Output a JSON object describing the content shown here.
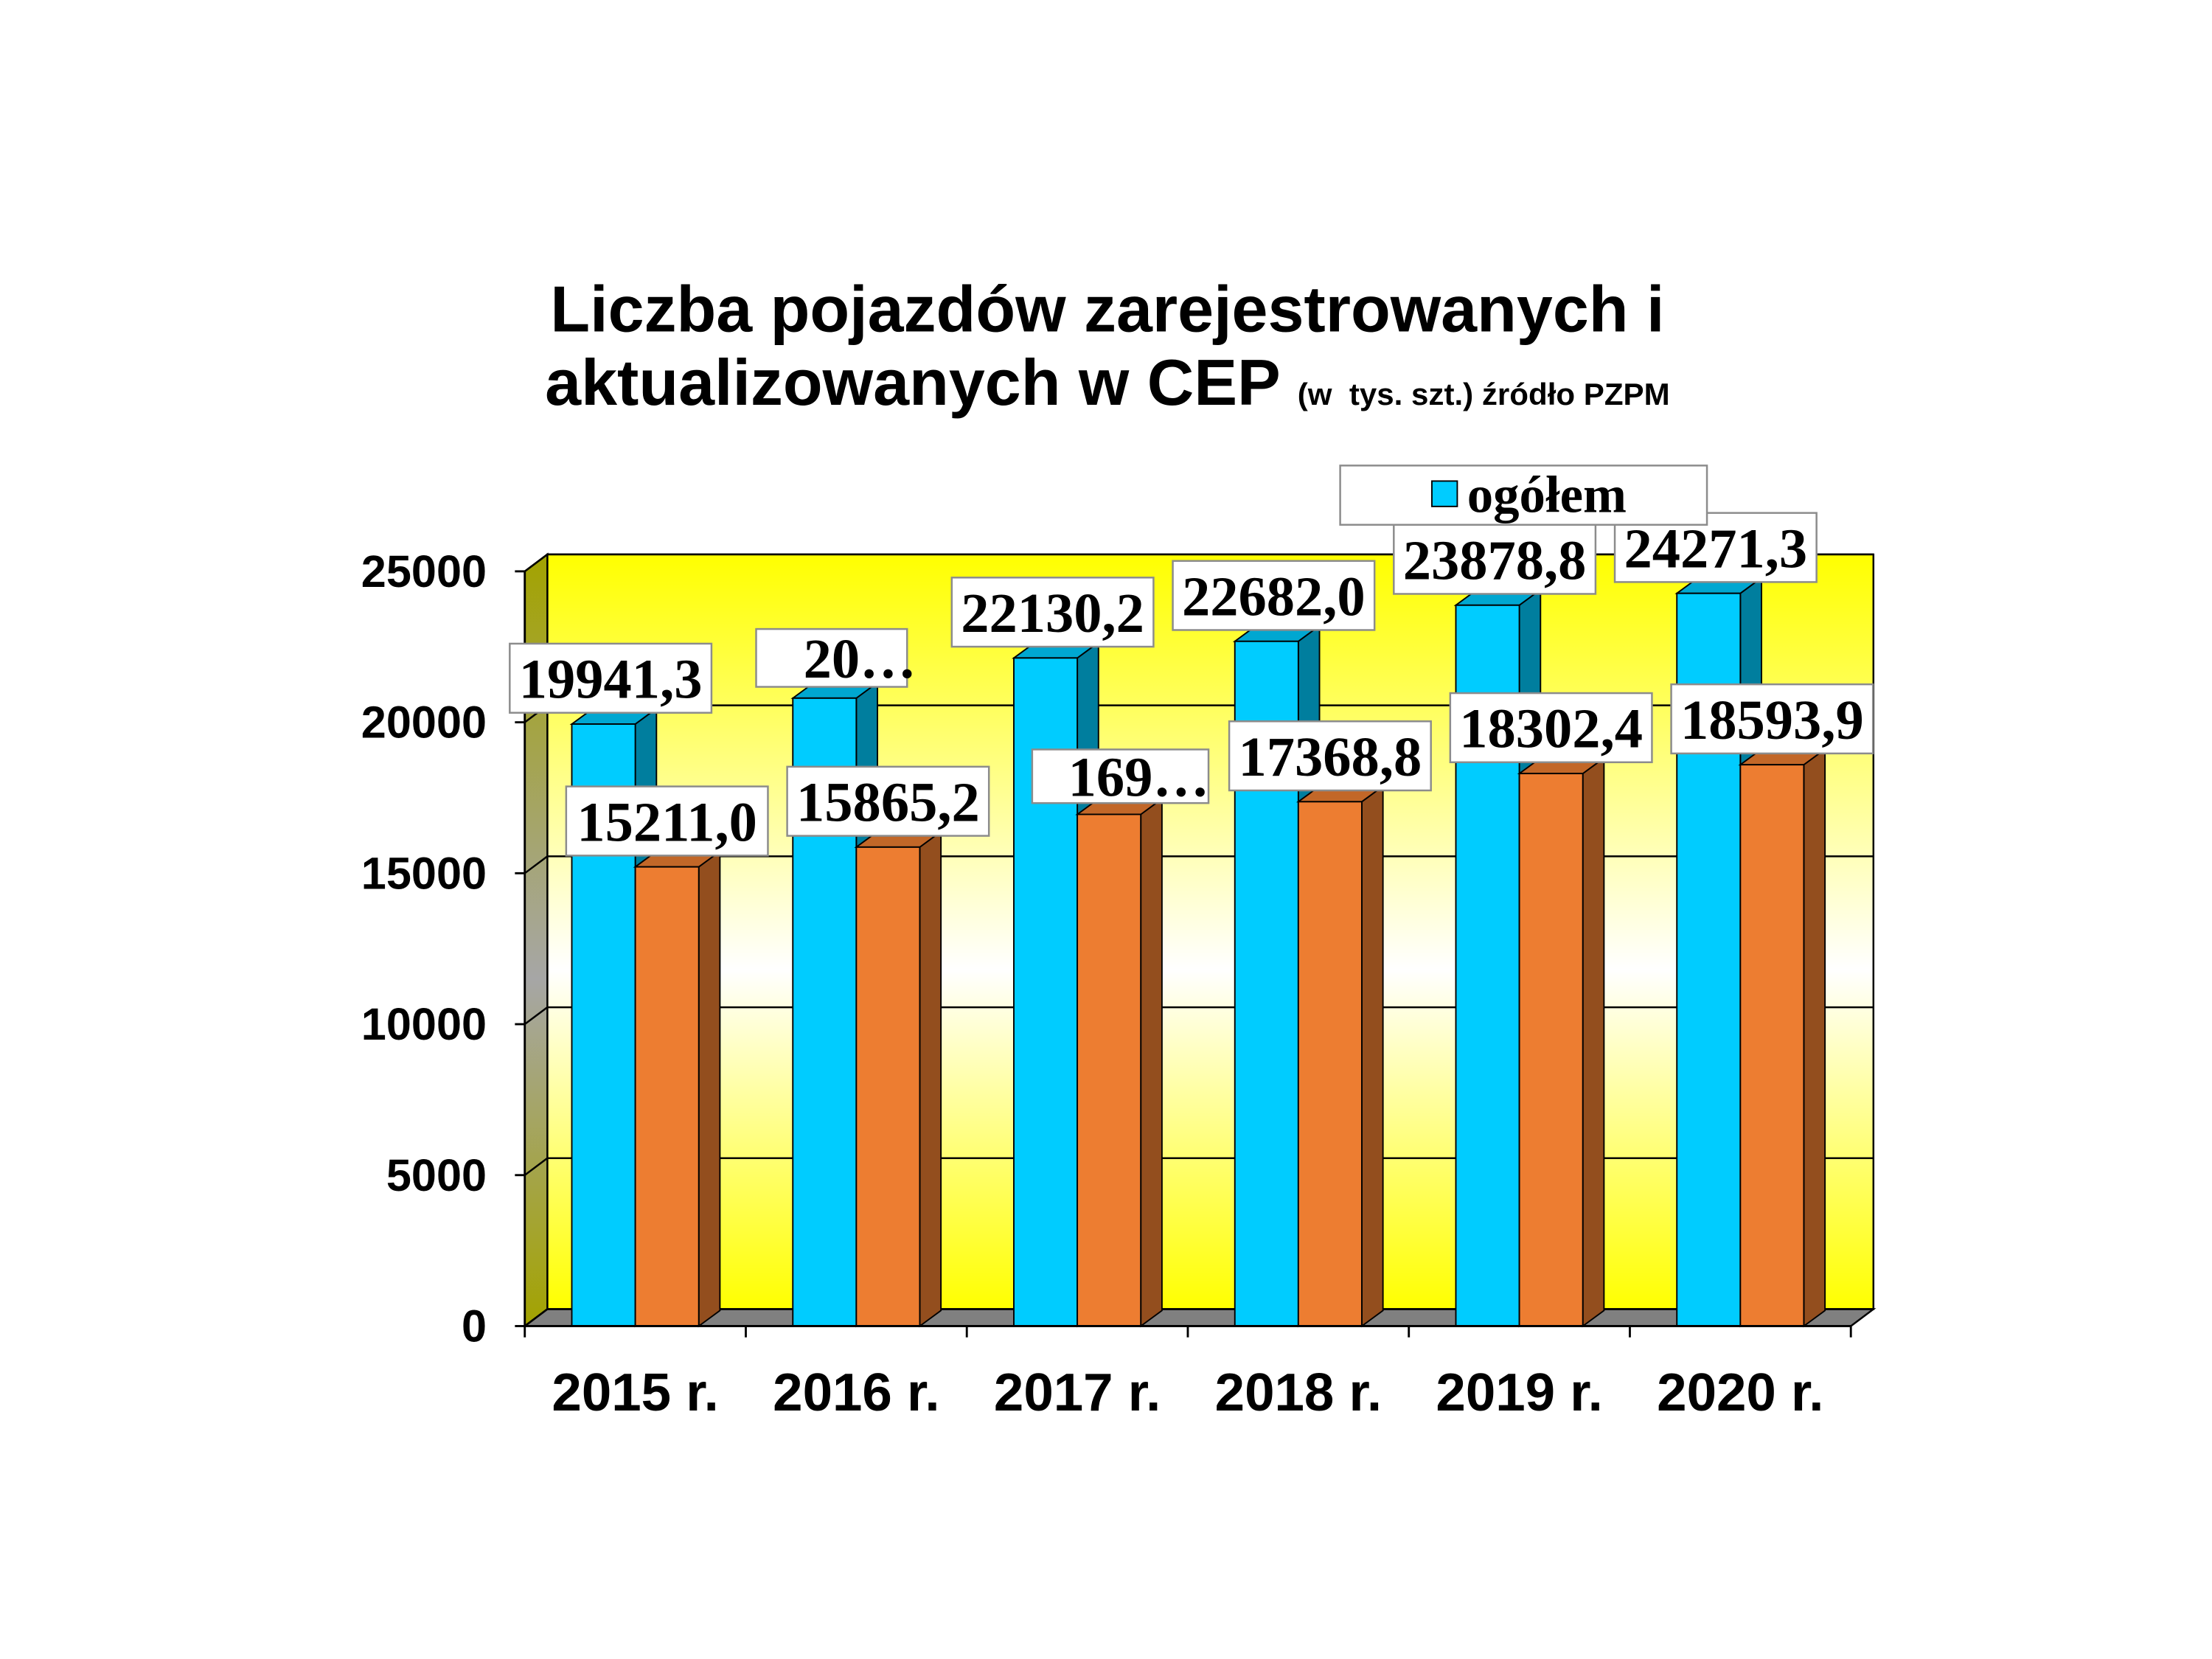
{
  "chart_data": {
    "type": "bar",
    "projection": "3d-clustered-column",
    "title": [
      "Liczba pojazdów zarejestrowanych i",
      "aktualizowanych w CEP"
    ],
    "subtitle": "(w  tys. szt.) źródło PZPM",
    "categories": [
      "2015 r.",
      "2016 r.",
      "2017 r.",
      "2018 r.",
      "2019 r.",
      "2020 r."
    ],
    "series": [
      {
        "name": "ogółem",
        "color": "#00CCFF",
        "values": [
          19941.3,
          20800,
          22130.2,
          22682.0,
          23878.8,
          24271.3
        ],
        "labels": [
          "19941,3",
          "20…",
          "22130,2",
          "22682,0",
          "23878,8",
          "24271,3"
        ]
      },
      {
        "color": "#ED7D31",
        "values": [
          15211.0,
          15865.2,
          16950,
          17368.8,
          18302.4,
          18593.9
        ],
        "labels": [
          "15211,0",
          "15865,2",
          "169…",
          "17368,8",
          "18302,4",
          "18593,9"
        ]
      }
    ],
    "ylim": [
      0,
      25000
    ],
    "yticks": [
      0,
      5000,
      10000,
      15000,
      20000,
      25000
    ],
    "xlabel": "",
    "ylabel": "",
    "grid": true,
    "legend": "top-right",
    "wall_color": "#FFFF00",
    "floor_color": "#808080"
  }
}
